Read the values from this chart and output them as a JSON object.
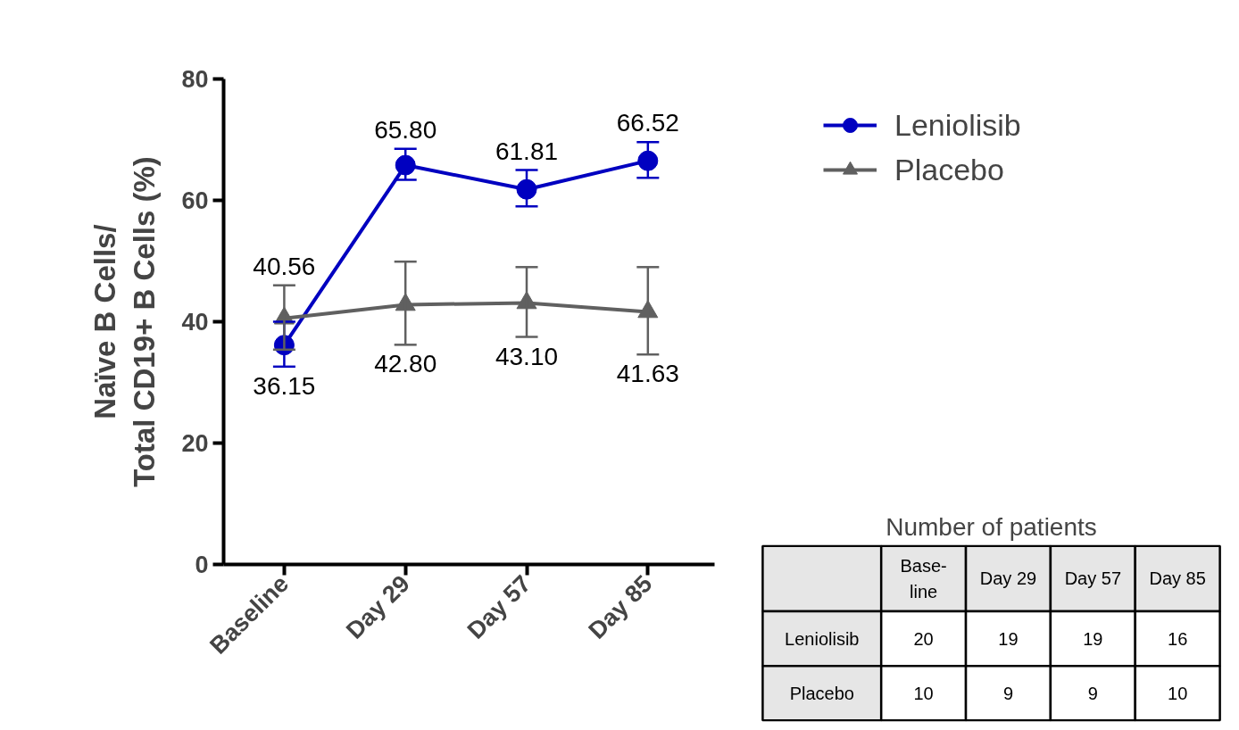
{
  "chart_data": [
    {
      "type": "line",
      "ylabel": "Naïve B Cells/\nTotal CD19+ B Cells (%)",
      "categories": [
        "Baseline",
        "Day 29",
        "Day 57",
        "Day 85"
      ],
      "series": [
        {
          "name": "Leniolisib",
          "color": "#0000c0",
          "marker": "circle",
          "values": [
            36.15,
            65.8,
            61.81,
            66.52
          ],
          "value_labels": [
            "36.15",
            "65.80",
            "61.81",
            "66.52"
          ],
          "errors": [
            [
              32.6,
              40.0
            ],
            [
              63.4,
              68.5
            ],
            [
              59.0,
              65.0
            ],
            [
              63.7,
              69.6
            ]
          ]
        },
        {
          "name": "Placebo",
          "color": "#606060",
          "marker": "triangle",
          "values": [
            40.56,
            42.8,
            43.1,
            41.63
          ],
          "value_labels": [
            "40.56",
            "42.80",
            "43.10",
            "41.63"
          ],
          "errors": [
            [
              35.4,
              46.0
            ],
            [
              36.2,
              49.9
            ],
            [
              37.5,
              49.0
            ],
            [
              34.6,
              49.0
            ]
          ]
        }
      ],
      "ylim": [
        0,
        80
      ],
      "yticks": [
        0,
        20,
        40,
        60,
        80
      ],
      "grid": false,
      "legend": "top right"
    },
    {
      "type": "other",
      "title": "Number of patients",
      "categories": [
        "Base-\nline",
        "Day 29",
        "Day 57",
        "Day 85"
      ],
      "series": [
        {
          "name": "Leniolisib",
          "values": [
            20,
            19,
            19,
            16
          ]
        },
        {
          "name": "Placebo",
          "values": [
            10,
            9,
            9,
            10
          ]
        }
      ],
      "data_labels": true
    }
  ]
}
